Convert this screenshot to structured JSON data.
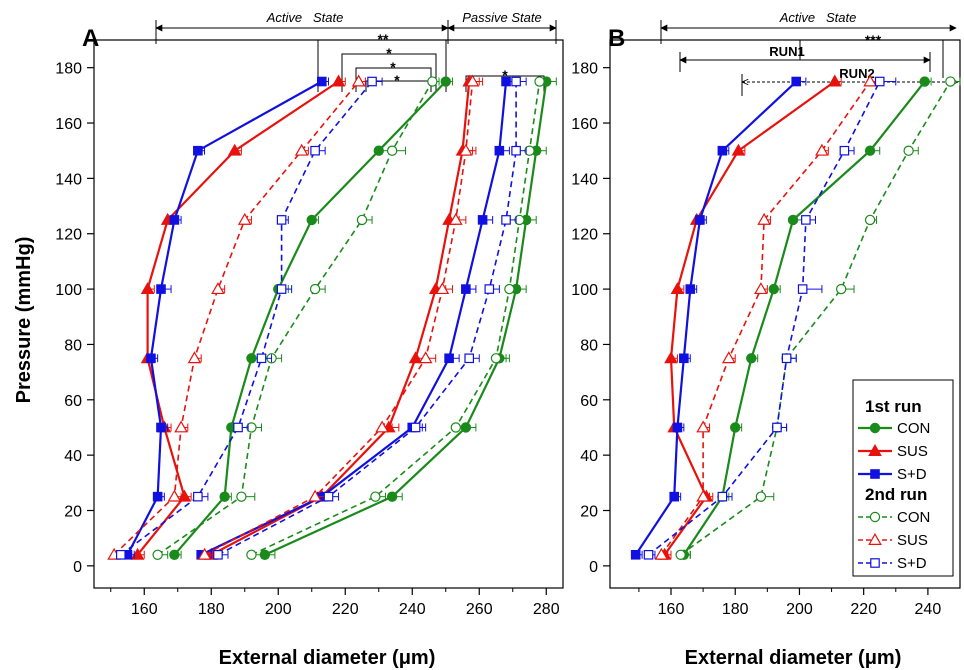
{
  "chart_data": [
    {
      "type": "line",
      "panel_label": "A",
      "xlabel": "External diameter (μm)",
      "ylabel": "Pressure (mmHg)",
      "xlim": [
        145,
        285
      ],
      "ylim": [
        -8,
        190
      ],
      "xticks": [
        160,
        180,
        200,
        220,
        240,
        260,
        280
      ],
      "yticks": [
        0,
        20,
        40,
        60,
        80,
        100,
        120,
        140,
        160,
        180
      ],
      "y": [
        4,
        25,
        50,
        75,
        100,
        125,
        150,
        175
      ],
      "brackets": {
        "active_label": "Active   State",
        "passive_label": "Passive State",
        "significance": [
          "**",
          "*",
          "*",
          "*",
          "*"
        ]
      },
      "groups": [
        {
          "state": "Active",
          "series": [
            {
              "name": "CON 1st run",
              "color": "#1a8a1a",
              "dashed": false,
              "marker": "circle-filled",
              "x": [
                169,
                184,
                186,
                192,
                200,
                210,
                230,
                250
              ],
              "err": [
                2,
                2,
                2,
                2,
                3,
                2,
                3,
                2
              ]
            },
            {
              "name": "SUS 1st run",
              "color": "#e8120c",
              "dashed": false,
              "marker": "triangle-filled",
              "x": [
                158,
                172,
                166,
                161,
                161,
                167,
                187,
                218
              ],
              "err": [
                2,
                2,
                2,
                2,
                2,
                2,
                2,
                2
              ]
            },
            {
              "name": "S+D 1st run",
              "color": "#1010e0",
              "dashed": false,
              "marker": "square-filled",
              "x": [
                155,
                164,
                165,
                162,
                165,
                169,
                176,
                213
              ],
              "err": [
                2,
                2,
                2,
                2,
                3,
                2,
                2,
                2
              ]
            },
            {
              "name": "CON 2nd run",
              "color": "#1a8a1a",
              "dashed": true,
              "marker": "circle-open",
              "x": [
                164,
                189,
                192,
                198,
                211,
                225,
                234,
                246
              ],
              "err": [
                3,
                4,
                3,
                3,
                3,
                3,
                4,
                2
              ]
            },
            {
              "name": "SUS 2nd run",
              "color": "#e8120c",
              "dashed": true,
              "marker": "triangle-open",
              "x": [
                151,
                169,
                171,
                175,
                182,
                190,
                207,
                224
              ],
              "err": [
                2,
                2,
                2,
                2,
                2,
                2,
                2,
                2
              ]
            },
            {
              "name": "S+D 2nd run",
              "color": "#1010e0",
              "dashed": true,
              "marker": "square-open",
              "x": [
                153,
                176,
                188,
                195,
                201,
                201,
                211,
                228
              ],
              "err": [
                2,
                3,
                3,
                3,
                3,
                2,
                3,
                3
              ]
            }
          ]
        },
        {
          "state": "Passive",
          "series": [
            {
              "name": "CON 1st run",
              "color": "#1a8a1a",
              "dashed": false,
              "marker": "circle-filled",
              "x": [
                196,
                234,
                256,
                266,
                271,
                274,
                277,
                280
              ],
              "err": [
                3,
                3,
                3,
                3,
                3,
                3,
                3,
                3
              ]
            },
            {
              "name": "SUS 1st run",
              "color": "#e8120c",
              "dashed": false,
              "marker": "triangle-filled",
              "x": [
                180,
                213,
                233,
                241,
                247,
                251,
                255,
                257
              ],
              "err": [
                3,
                3,
                3,
                3,
                3,
                3,
                3,
                3
              ]
            },
            {
              "name": "S+D 1st run",
              "color": "#1010e0",
              "dashed": false,
              "marker": "square-filled",
              "x": [
                177,
                213,
                240,
                251,
                256,
                261,
                266,
                268
              ],
              "err": [
                3,
                3,
                3,
                3,
                3,
                3,
                3,
                3
              ]
            },
            {
              "name": "CON 2nd run",
              "color": "#1a8a1a",
              "dashed": true,
              "marker": "circle-open",
              "x": [
                192,
                229,
                253,
                265,
                269,
                272,
                275,
                278
              ],
              "err": [
                3,
                3,
                3,
                3,
                3,
                3,
                3,
                3
              ]
            },
            {
              "name": "SUS 2nd run",
              "color": "#e8120c",
              "dashed": true,
              "marker": "triangle-open",
              "x": [
                178,
                211,
                231,
                244,
                249,
                253,
                256,
                258
              ],
              "err": [
                3,
                3,
                3,
                3,
                3,
                3,
                3,
                3
              ]
            },
            {
              "name": "S+D 2nd run",
              "color": "#1010e0",
              "dashed": true,
              "marker": "square-open",
              "x": [
                182,
                215,
                241,
                257,
                263,
                268,
                271,
                271
              ],
              "err": [
                3,
                3,
                3,
                3,
                3,
                3,
                3,
                3
              ]
            }
          ]
        }
      ]
    },
    {
      "type": "line",
      "panel_label": "B",
      "xlabel": "External diameter (μm)",
      "ylabel": "",
      "xlim": [
        141,
        250
      ],
      "ylim": [
        -8,
        190
      ],
      "xticks": [
        160,
        180,
        200,
        220,
        240
      ],
      "yticks": [
        0,
        20,
        40,
        60,
        80,
        100,
        120,
        140,
        160,
        180
      ],
      "y": [
        4,
        25,
        50,
        75,
        100,
        125,
        150,
        175
      ],
      "brackets": {
        "active_label": "Active   State",
        "run1_label": "RUN1",
        "run2_label": "RUN2",
        "significance": [
          "***"
        ]
      },
      "legend": {
        "heading_1": "1st run",
        "heading_2": "2nd run",
        "entries_1": [
          "CON",
          "SUS",
          "S+D"
        ],
        "entries_2": [
          "CON",
          "SUS",
          "S+D"
        ]
      },
      "series": [
        {
          "name": "CON 1st run",
          "color": "#1a8a1a",
          "dashed": false,
          "marker": "circle-filled",
          "x": [
            164,
            176,
            180,
            185,
            192,
            198,
            222,
            239
          ],
          "err": [
            2,
            2,
            2,
            2,
            2,
            3,
            3,
            2
          ]
        },
        {
          "name": "SUS 1st run",
          "color": "#e8120c",
          "dashed": false,
          "marker": "triangle-filled",
          "x": [
            158,
            171,
            161,
            160,
            162,
            168,
            181,
            211
          ],
          "err": [
            2,
            2,
            2,
            2,
            2,
            2,
            2,
            2
          ]
        },
        {
          "name": "S+D 1st run",
          "color": "#1010e0",
          "dashed": false,
          "marker": "square-filled",
          "x": [
            149,
            161,
            162,
            164,
            166,
            169,
            176,
            199
          ],
          "err": [
            2,
            2,
            2,
            2,
            2,
            2,
            2,
            3
          ]
        },
        {
          "name": "CON 2nd run",
          "color": "#1a8a1a",
          "dashed": true,
          "marker": "circle-open",
          "x": [
            163,
            188,
            193,
            196,
            213,
            222,
            234,
            247
          ],
          "err": [
            3,
            4,
            3,
            3,
            4,
            2,
            3,
            3
          ]
        },
        {
          "name": "SUS 2nd run",
          "color": "#e8120c",
          "dashed": true,
          "marker": "triangle-open",
          "x": [
            157,
            170,
            170,
            178,
            188,
            189,
            207,
            222
          ],
          "err": [
            2,
            2,
            2,
            2,
            2,
            2,
            2,
            2
          ]
        },
        {
          "name": "S+D 2nd run",
          "color": "#1010e0",
          "dashed": true,
          "marker": "square-open",
          "x": [
            153,
            176,
            193,
            196,
            201,
            202,
            214,
            225
          ],
          "err": [
            2,
            3,
            3,
            3,
            6,
            3,
            3,
            5
          ]
        }
      ]
    }
  ]
}
